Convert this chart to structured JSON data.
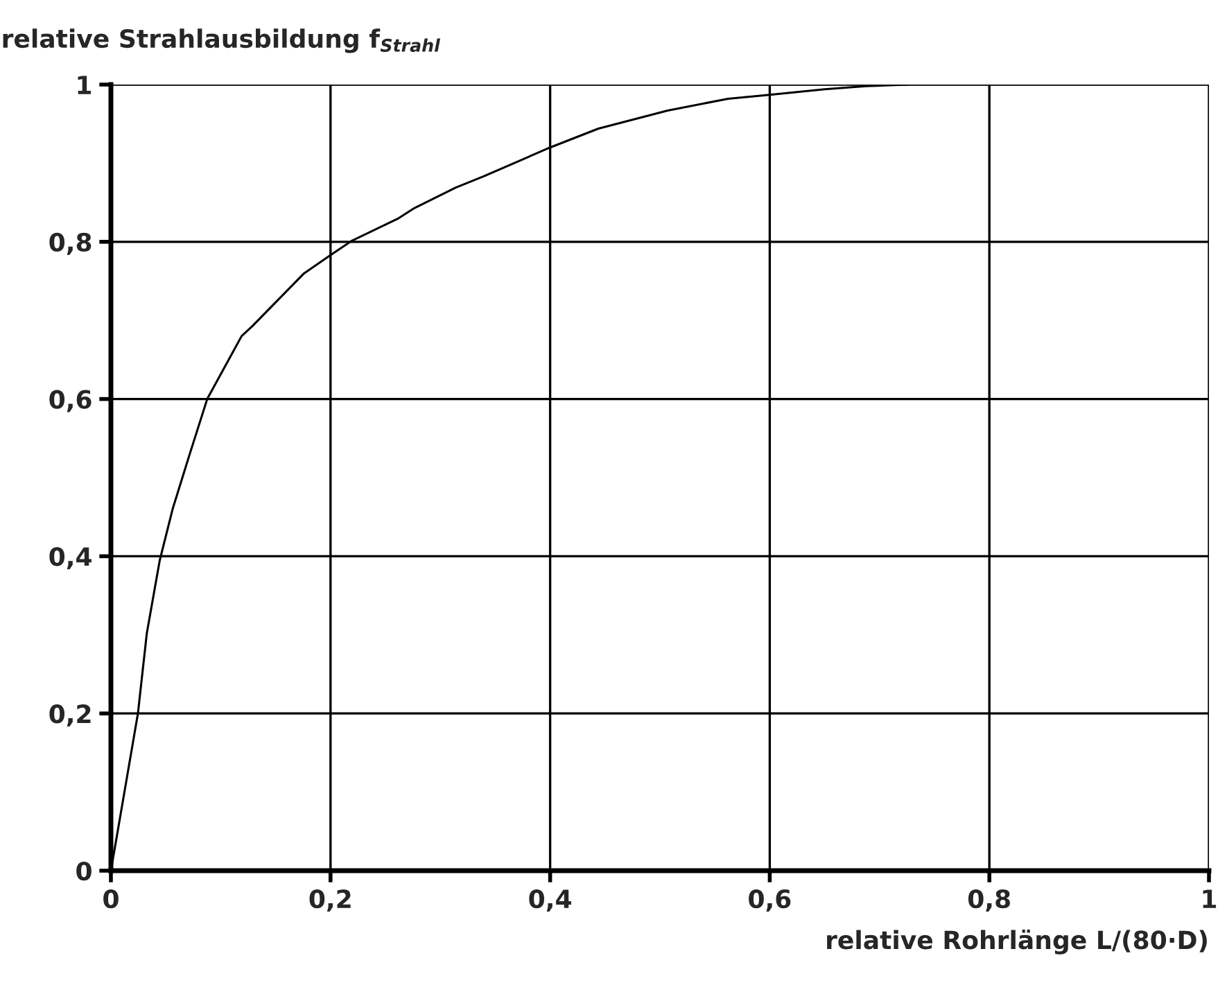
{
  "chart_data": {
    "type": "line",
    "ylabel": "relative Strahlausbildung f$_{Strahl}$",
    "xlabel": "relative Rohrlänge L/(80·D)",
    "x": [
      0,
      0.0246,
      0.0327,
      0.0445,
      0.0564,
      0.0711,
      0.0877,
      0.119,
      0.129,
      0.176,
      0.2,
      0.219,
      0.262,
      0.2765,
      0.314,
      0.339,
      0.4,
      0.444,
      0.507,
      0.562,
      0.6,
      0.65,
      0.688,
      0.726
    ],
    "series": [
      {
        "color": "#000000",
        "values": [
          0,
          0.2,
          0.302,
          0.395,
          0.461,
          0.527,
          0.6,
          0.68,
          0.693,
          0.76,
          0.783,
          0.801,
          0.83,
          0.843,
          0.869,
          0.883,
          0.92,
          0.944,
          0.967,
          0.982,
          0.987,
          0.994,
          0.998,
          1.0
        ]
      }
    ],
    "xlim": [
      0,
      1
    ],
    "ylim": [
      0,
      1
    ],
    "xticks": [
      0,
      {
        "value": 0.2,
        "label": "0,2"
      },
      {
        "value": 0.4,
        "label": "0,4"
      },
      {
        "value": 0.6,
        "label": "0,6"
      },
      {
        "value": 0.8,
        "label": "0,8"
      },
      1
    ],
    "yticks": [
      0,
      {
        "value": 0.2,
        "label": "0,2"
      },
      {
        "value": 0.4,
        "label": "0,4"
      },
      {
        "value": 0.6,
        "label": "0,6"
      },
      {
        "value": 0.8,
        "label": "0,8"
      },
      1
    ],
    "grid": true,
    "legend": false,
    "marker": "none",
    "line_style": "solid"
  }
}
